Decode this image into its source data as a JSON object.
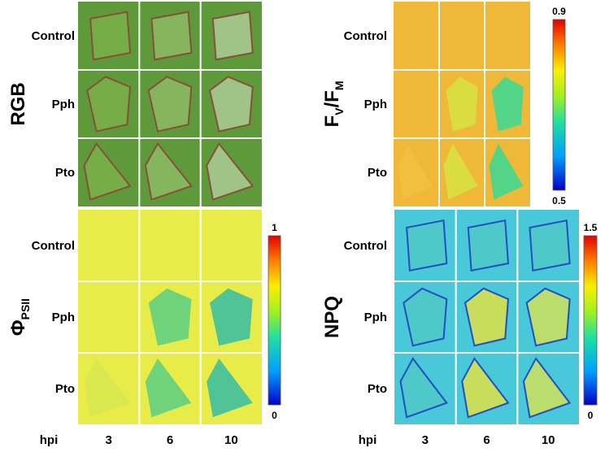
{
  "panels": [
    {
      "label": [
        "RGB"
      ],
      "rows": [
        "Control",
        "Pph",
        "Pto"
      ]
    },
    {
      "label": [
        "F",
        "V",
        "/F",
        "M"
      ],
      "rows": [
        "Control",
        "Pph",
        "Pto"
      ],
      "colorbar": {
        "max": 0.9,
        "min": 0.5
      }
    },
    {
      "label": [
        "Φ",
        "PSII"
      ],
      "rows": [
        "Control",
        "Pph",
        "Pto"
      ],
      "colorbar": {
        "max": 1,
        "min": 0
      }
    },
    {
      "label": [
        "NPQ"
      ],
      "rows": [
        "Control",
        "Pph",
        "Pto"
      ],
      "colorbar": {
        "max": 1.5,
        "min": 0
      }
    }
  ],
  "columns_label": "hpi",
  "columns": [
    "3",
    "6",
    "10"
  ]
}
